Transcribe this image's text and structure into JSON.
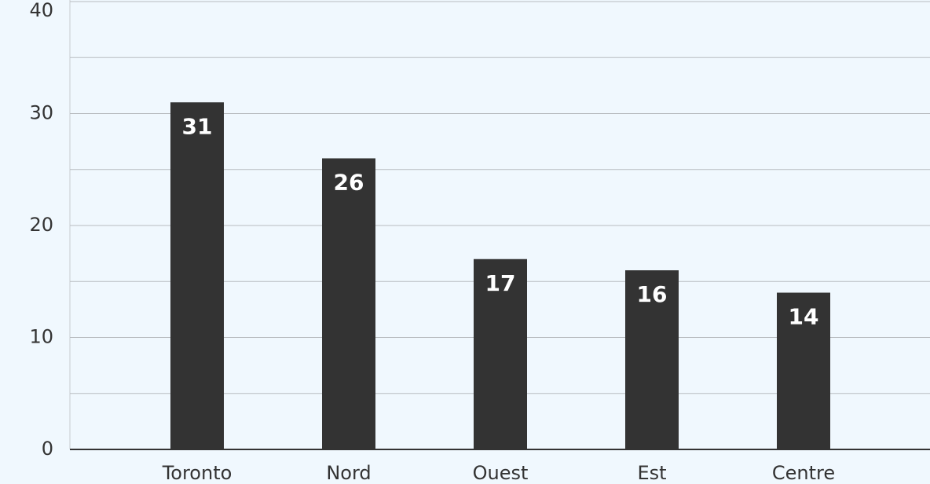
{
  "chart_data": {
    "type": "bar",
    "categories": [
      "Toronto",
      "Nord",
      "Ouest",
      "Est",
      "Centre"
    ],
    "values": [
      31,
      26,
      17,
      16,
      14
    ],
    "color": "#333333",
    "ylim": [
      0,
      40
    ],
    "yticks": [
      0,
      10,
      20,
      30,
      40
    ],
    "minor_gridlines": [
      5,
      15,
      25,
      35
    ],
    "grid": true
  }
}
